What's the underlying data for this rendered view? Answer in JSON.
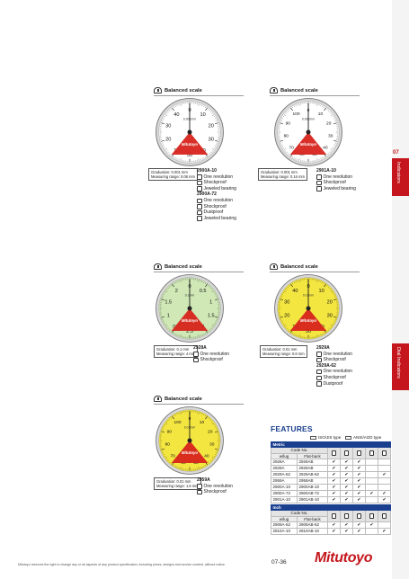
{
  "side": {
    "page_no": "07",
    "tab_indicators": "Indicators",
    "tab_dial": "Dial Indicators"
  },
  "block_title": "Balanced scale",
  "dials": [
    {
      "id": "2900a",
      "face_color": "#ffffff",
      "ticks": [
        "0",
        "10",
        "20",
        "30",
        "40",
        "50",
        "10",
        "20",
        "30",
        "40"
      ],
      "small_text": "0.001mm",
      "brand": "Mitutoyo",
      "spec": [
        "Graduation: 0.001 mm",
        "Measuring range: 0.08 mm"
      ],
      "models": [
        {
          "code": "2900A-10",
          "features": [
            "One revolution",
            "Shockproof",
            "Jeweled bearing"
          ]
        },
        {
          "code": "2900A-72",
          "features": [
            "One revolution",
            "Shockproof",
            "Dustproof",
            "Jeweled bearing"
          ]
        }
      ]
    },
    {
      "id": "2901a",
      "face_color": "#ffffff",
      "ticks": [
        "0",
        "10",
        "20",
        "30",
        "40",
        "50",
        "60",
        "70",
        "80",
        "90",
        "100"
      ],
      "small_text": "0.001mm",
      "brand": "Mitutoyo",
      "spec": [
        "Graduation: 0.001 mm",
        "Measuring range: 0.16 mm"
      ],
      "models": [
        {
          "code": "2901A-10",
          "features": [
            "One revolution",
            "Shockproof",
            "Jeweled bearing"
          ]
        }
      ]
    },
    {
      "id": "2928a",
      "face_color": "#cfe8b6",
      "ticks": [
        "0",
        "0.5",
        "1",
        "1.5",
        "2",
        "2.5",
        "0.5",
        "1",
        "1.5",
        "2"
      ],
      "small_text": "0.1mm",
      "brand": "Mitutoyo",
      "spec": [
        "Graduation: 0.1 mm",
        "Measuring range: 4 mm"
      ],
      "models": [
        {
          "code": "2928A",
          "features": [
            "One revolution",
            "Shockproof"
          ]
        }
      ]
    },
    {
      "id": "2929a",
      "face_color": "#f4e640",
      "ticks": [
        "0",
        "10",
        "20",
        "30",
        "40",
        "50",
        "10",
        "20",
        "30",
        "40"
      ],
      "small_text": "0.01mm",
      "brand": "Mitutoyo",
      "spec": [
        "Graduation: 0.01 mm",
        "Measuring range: 0.8 mm"
      ],
      "models": [
        {
          "code": "2929A",
          "features": [
            "One revolution",
            "Shockproof"
          ]
        },
        {
          "code": "2929A-62",
          "features": [
            "One revolution",
            "Shockproof",
            "Dustproof"
          ]
        }
      ]
    },
    {
      "id": "2959a",
      "face_color": "#f4e640",
      "ticks": [
        "0",
        "10",
        "20",
        "30",
        "40",
        "50",
        "60",
        "70",
        "80",
        "90",
        "100"
      ],
      "small_text": "0.01mm",
      "brand": "Mitutoyo",
      "spec": [
        "Graduation: 0.01 mm",
        "Measuring range: 1.6 mm"
      ],
      "models": [
        {
          "code": "2959A",
          "features": [
            "One revolution",
            "Shockproof"
          ]
        }
      ]
    }
  ],
  "features": {
    "title": "FEATURES",
    "legend_iso": "ISO/JIS type",
    "legend_ansi": "ANSI/AGD type",
    "metric_label": "Metric",
    "inch_label": "Inch",
    "code_no": "Code No.",
    "col_lug": "w/lug",
    "col_flat": "Flat-back",
    "check": "✔",
    "metric_rows": [
      {
        "lug": "2928A",
        "flat": "2928AB",
        "c": [
          1,
          1,
          1,
          0,
          0
        ]
      },
      {
        "lug": "2929A",
        "flat": "2929AB",
        "c": [
          1,
          1,
          1,
          0,
          0
        ]
      },
      {
        "lug": "2929A-62",
        "flat": "2929AB-62",
        "c": [
          1,
          1,
          1,
          0,
          1
        ]
      },
      {
        "lug": "2959A",
        "flat": "2959AB",
        "c": [
          1,
          1,
          1,
          0,
          0
        ]
      },
      {
        "lug": "2900A-10",
        "flat": "2900AB-10",
        "c": [
          1,
          1,
          1,
          0,
          0
        ]
      },
      {
        "lug": "2900A-72",
        "flat": "2900AB-72",
        "c": [
          1,
          1,
          1,
          1,
          1
        ]
      },
      {
        "lug": "2901A-10",
        "flat": "2901AB-10",
        "c": [
          1,
          1,
          1,
          0,
          1
        ]
      }
    ],
    "inch_rows": [
      {
        "lug": "2909A-62",
        "flat": "2909AB-62",
        "c": [
          1,
          1,
          1,
          1,
          0
        ]
      },
      {
        "lug": "2910A-10",
        "flat": "2910AB-10",
        "c": [
          1,
          1,
          1,
          0,
          1
        ]
      }
    ]
  },
  "footer": {
    "disclaimer": "Mitutoyo reserves the right to change any or all aspects of any product specification, including prices, designs and service content, without notice.",
    "page": "07-36",
    "brand": "Mitutoyo"
  }
}
